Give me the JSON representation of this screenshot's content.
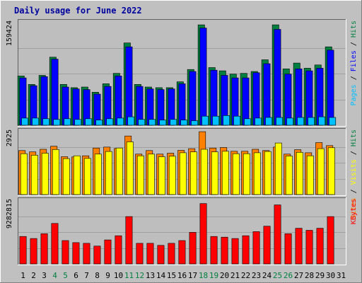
{
  "chart_data": {
    "type": "bar",
    "title": "Daily usage for June 2022",
    "categories": [
      "1",
      "2",
      "3",
      "4",
      "5",
      "6",
      "7",
      "8",
      "9",
      "10",
      "11",
      "12",
      "13",
      "14",
      "15",
      "16",
      "17",
      "18",
      "19",
      "20",
      "21",
      "22",
      "23",
      "24",
      "25",
      "26",
      "27",
      "28",
      "29",
      "30",
      "31"
    ],
    "weekend_days": [
      4,
      5,
      11,
      12,
      18,
      19,
      25,
      26
    ],
    "colors": {
      "background": "#c0c0c0",
      "plot_background": "#bebebe",
      "title": "#0000a0",
      "hits": "#008040",
      "files": "#0000ff",
      "pages": "#00c0ff",
      "visits": "#ff8000",
      "sites": "#ffff00",
      "kbytes": "#ff0000",
      "weekend_label": "#008040"
    },
    "panels": [
      {
        "ymax": 159424,
        "ymax_label": "159424",
        "legend": [
          "Pages",
          "Files",
          "Hits"
        ],
        "series": [
          {
            "name": "Hits",
            "color": "#008040",
            "values": [
              76000,
              63000,
              77000,
              105000,
              63000,
              58000,
              59000,
              51000,
              64000,
              80000,
              127000,
              63000,
              59000,
              58000,
              58000,
              67000,
              86000,
              155000,
              89000,
              84000,
              79000,
              80000,
              83000,
              101000,
              155000,
              87000,
              96000,
              88000,
              93000,
              121000,
              0
            ]
          },
          {
            "name": "Files",
            "color": "#0000ff",
            "values": [
              73000,
              61000,
              75000,
              102000,
              59000,
              56000,
              55000,
              48000,
              60000,
              76000,
              121000,
              60000,
              56000,
              55000,
              56000,
              64000,
              83000,
              150000,
              85000,
              77000,
              73000,
              73000,
              81000,
              95000,
              148000,
              79000,
              87000,
              84000,
              88000,
              116000,
              0
            ]
          },
          {
            "name": "Pages",
            "color": "#00c0ff",
            "values": [
              11000,
              11000,
              10000,
              9000,
              10000,
              9000,
              10000,
              8000,
              10000,
              11000,
              13000,
              9000,
              9000,
              8000,
              9000,
              8000,
              7000,
              14000,
              14000,
              15000,
              14000,
              10000,
              11000,
              12000,
              12000,
              11000,
              12000,
              12000,
              13000,
              12000,
              0
            ]
          }
        ]
      },
      {
        "ymax": 2925,
        "ymax_label": "2925",
        "legend": [
          "Sites",
          "Visits",
          "Hits"
        ],
        "series": [
          {
            "name": "Visits",
            "color": "#ff8000",
            "values": [
              2020,
              1960,
              2080,
              2220,
              1740,
              1730,
              1780,
              2140,
              2180,
              2120,
              2690,
              1860,
              2020,
              1860,
              1900,
              2030,
              2110,
              2890,
              2140,
              2160,
              1990,
              1990,
              2080,
              2020,
              2180,
              1860,
              2060,
              1920,
              2390,
              2250,
              0
            ]
          },
          {
            "name": "Sites",
            "color": "#ffff00",
            "values": [
              1880,
              1810,
              1900,
              2070,
              1650,
              1780,
              1660,
              1860,
              1980,
              2140,
              2420,
              1780,
              1860,
              1740,
              1760,
              1920,
              1960,
              2080,
              1960,
              1990,
              1880,
              1880,
              1920,
              1980,
              2370,
              1770,
              1940,
              1780,
              2110,
              2150,
              0
            ]
          }
        ]
      },
      {
        "ymax": 9282815,
        "ymax_label": "9282815",
        "legend": [
          "KBytes"
        ],
        "series": [
          {
            "name": "KBytes",
            "color": "#ff0000",
            "values": [
              4000000,
              3700000,
              4400000,
              5900000,
              3400000,
              3100000,
              3000000,
              2600000,
              3500000,
              4100000,
              6900000,
              3000000,
              3000000,
              2700000,
              3000000,
              3400000,
              4600000,
              8800000,
              4000000,
              3900000,
              3700000,
              4100000,
              4700000,
              5500000,
              8600000,
              4400000,
              5200000,
              4900000,
              5200000,
              6900000,
              0
            ]
          }
        ]
      }
    ]
  }
}
